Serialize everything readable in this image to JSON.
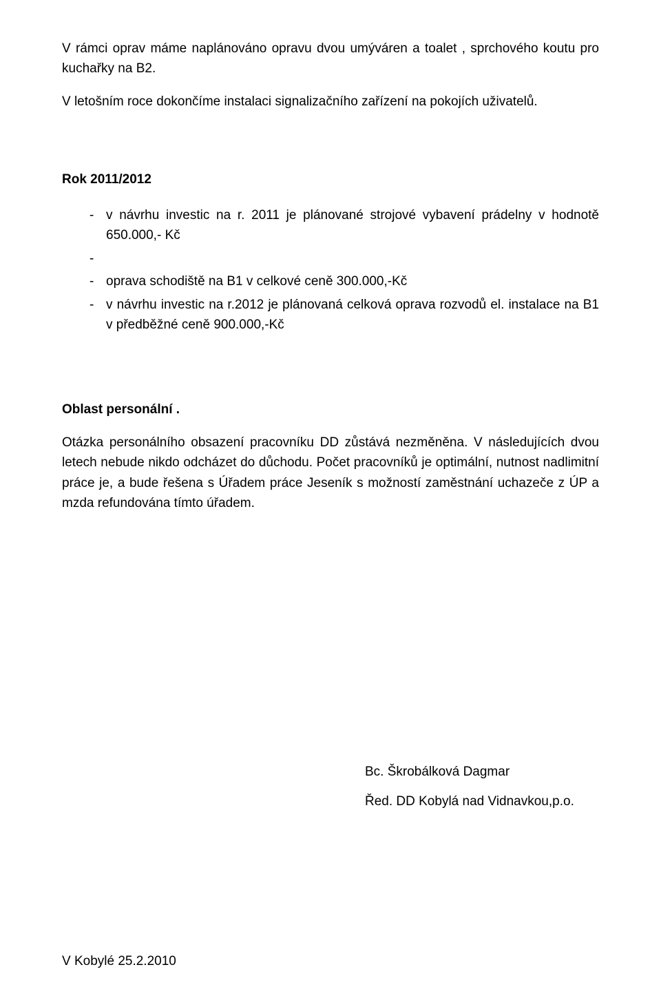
{
  "intro": {
    "p1": "V rámci oprav máme naplánováno opravu dvou umýváren a toalet ,  sprchového koutu pro kuchařky na B2.",
    "p2": "V letošním roce dokončíme instalaci signalizačního zařízení na pokojích uživatelů."
  },
  "year_heading": "Rok 2011/2012",
  "bullets": {
    "b1": "v návrhu investic na r. 2011 je plánované strojové vybavení prádelny v hodnotě 650.000,- Kč",
    "b2": "oprava schodiště na B1 v celkové ceně 300.000,-Kč",
    "b3": "v návrhu investic na r.2012 je plánovaná celková oprava rozvodů el. instalace na B1 v předběžné ceně 900.000,-Kč"
  },
  "section2": {
    "heading": "Oblast personální .",
    "p1": "Otázka personálního obsazení pracovníku DD zůstává nezměněna. V následujících dvou letech nebude nikdo odcházet do důchodu. Počet pracovníků je optimální, nutnost nadlimitní práce je, a bude řešena s Úřadem práce Jeseník s možností zaměstnání uchazeče z ÚP a mzda refundována  tímto úřadem."
  },
  "signature": {
    "name": "Bc. Škrobálková Dagmar",
    "title": "Řed. DD Kobylá nad Vidnavkou,p.o."
  },
  "footer_date": "V Kobylé 25.2.2010"
}
